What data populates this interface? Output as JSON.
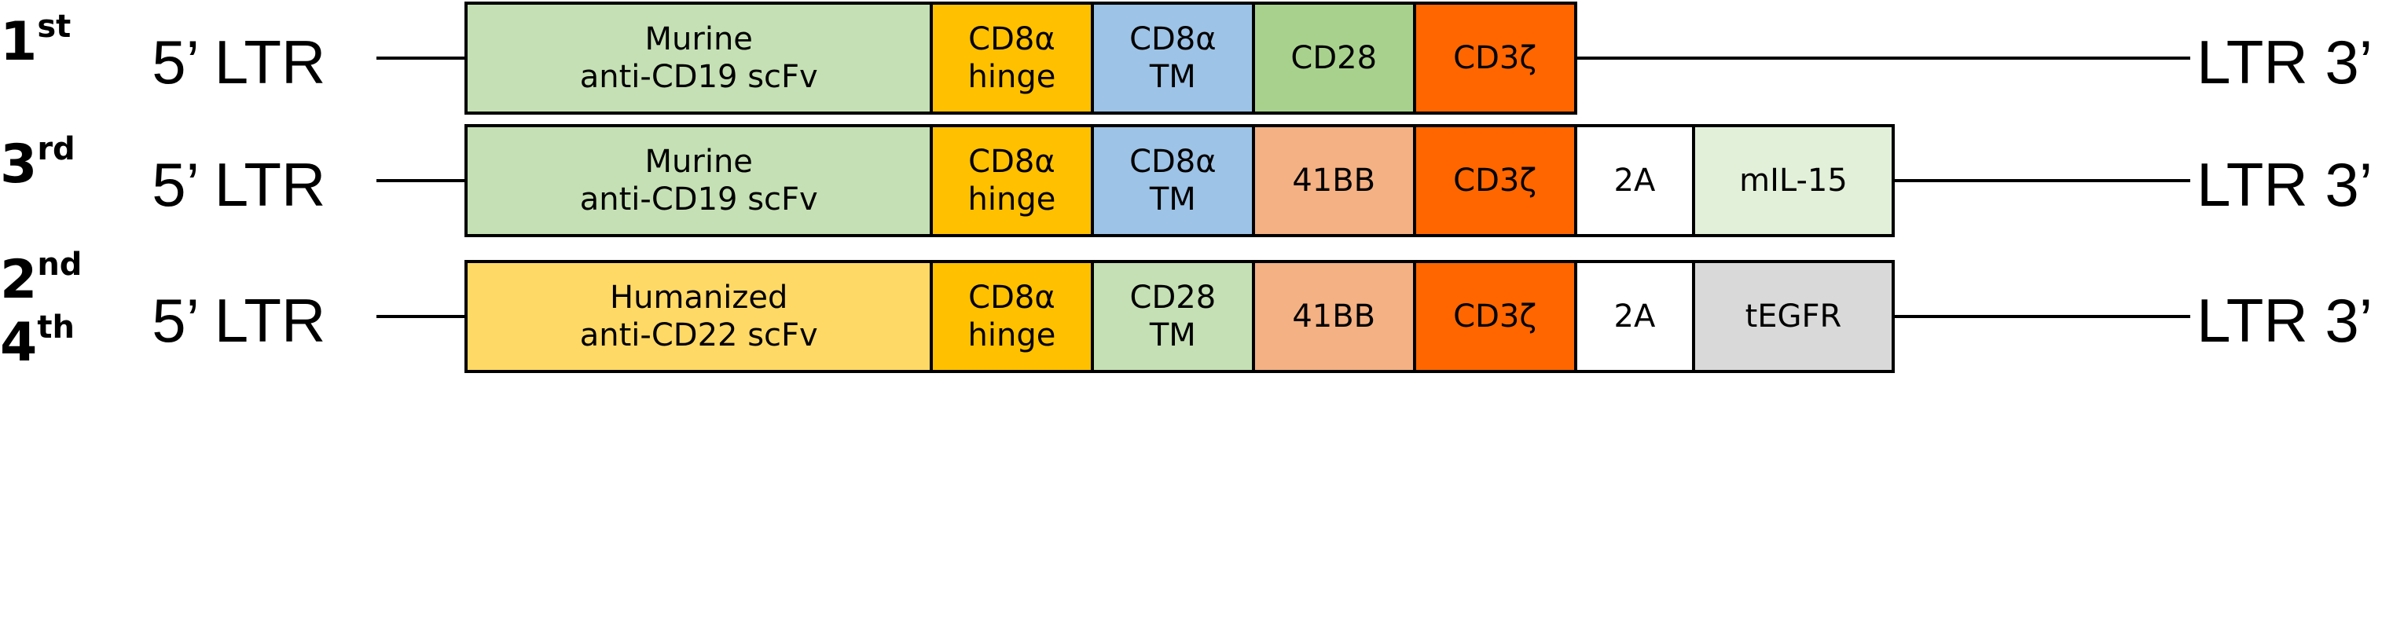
{
  "constructs": [
    {
      "generation_labels": [
        {
          "num": "1",
          "suffix": "st"
        }
      ],
      "ltr5": "5’ LTR",
      "ltr3": "LTR 3’",
      "segments": [
        {
          "lines": [
            "Murine",
            "anti-CD19 scFv"
          ],
          "color": "#C5E0B4"
        },
        {
          "lines": [
            "CD8α",
            "hinge"
          ],
          "color": "#FFC000"
        },
        {
          "lines": [
            "CD8α",
            "TM"
          ],
          "color": "#9DC3E6"
        },
        {
          "lines": [
            "CD28"
          ],
          "color": "#A9D18E"
        },
        {
          "lines": [
            "CD3ζ"
          ],
          "color": "#FF6600"
        }
      ]
    },
    {
      "generation_labels": [
        {
          "num": "3",
          "suffix": "rd"
        }
      ],
      "ltr5": "5’ LTR",
      "ltr3": "LTR 3’",
      "segments": [
        {
          "lines": [
            "Murine",
            "anti-CD19 scFv"
          ],
          "color": "#C5E0B4"
        },
        {
          "lines": [
            "CD8α",
            "hinge"
          ],
          "color": "#FFC000"
        },
        {
          "lines": [
            "CD8α",
            "TM"
          ],
          "color": "#9DC3E6"
        },
        {
          "lines": [
            "41BB"
          ],
          "color": "#F4B183"
        },
        {
          "lines": [
            "CD3ζ"
          ],
          "color": "#FF6600"
        },
        {
          "lines": [
            "2A"
          ],
          "color": "#FFFFFF"
        },
        {
          "lines": [
            "mIL-15"
          ],
          "color": "#E2F0D9"
        }
      ]
    },
    {
      "generation_labels": [
        {
          "num": "2",
          "suffix": "nd"
        },
        {
          "num": "4",
          "suffix": "th"
        }
      ],
      "ltr5": "5’ LTR",
      "ltr3": "LTR 3’",
      "segments": [
        {
          "lines": [
            "Humanized",
            "anti-CD22 scFv"
          ],
          "color": "#FFD966"
        },
        {
          "lines": [
            "CD8α",
            "hinge"
          ],
          "color": "#FFC000"
        },
        {
          "lines": [
            "CD28",
            "TM"
          ],
          "color": "#C5E0B4"
        },
        {
          "lines": [
            "41BB"
          ],
          "color": "#F4B183"
        },
        {
          "lines": [
            "CD3ζ"
          ],
          "color": "#FF6600"
        },
        {
          "lines": [
            "2A"
          ],
          "color": "#FFFFFF"
        },
        {
          "lines": [
            "tEGFR"
          ],
          "color": "#D9D9D9"
        }
      ]
    }
  ]
}
